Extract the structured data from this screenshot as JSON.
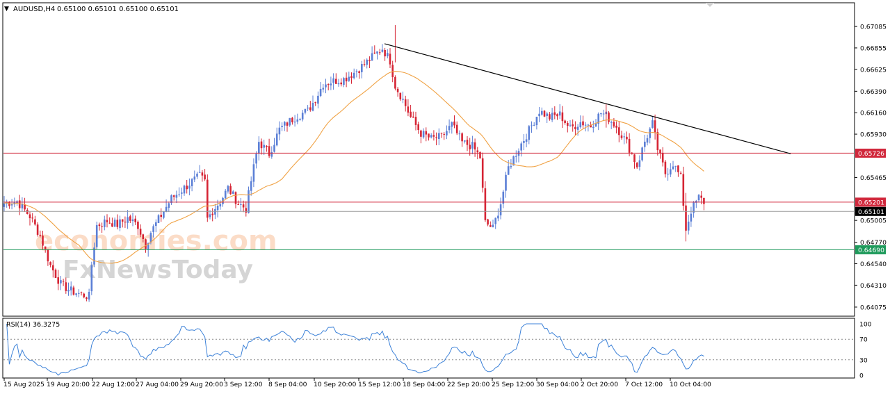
{
  "header": {
    "symbol_timeframe": "AUDUSD,H4",
    "ohlc": "0.65100 0.65101 0.65100 0.65101"
  },
  "watermarks": {
    "brand1": "economies.com",
    "brand2": "FxNewsToday"
  },
  "chart_data": {
    "type": "candlestick",
    "symbol": "AUDUSD",
    "timeframe": "H4",
    "price_ticks": [
      "0.67085",
      "0.66855",
      "0.66625",
      "0.66390",
      "0.66160",
      "0.65930",
      "0.65465",
      "0.65005",
      "0.64770",
      "0.64540",
      "0.64310",
      "0.64075"
    ],
    "ylim": [
      0.64,
      0.6719
    ],
    "x_ticks": [
      "15 Aug 2025",
      "19 Aug 20:00",
      "22 Aug 12:00",
      "27 Aug 04:00",
      "29 Aug 20:00",
      "3 Sep 12:00",
      "8 Sep 04:00",
      "10 Sep 20:00",
      "15 Sep 12:00",
      "18 Sep 04:00",
      "22 Sep 20:00",
      "25 Sep 12:00",
      "30 Sep 04:00",
      "2 Oct 20:00",
      "7 Oct 12:00",
      "10 Oct 04:00"
    ],
    "price_levels": [
      {
        "label": "0.65726",
        "value": 0.65726,
        "color": "#d1283c"
      },
      {
        "label": "0.65201",
        "value": 0.65201,
        "color": "#d1283c"
      },
      {
        "label": "0.65101",
        "value": 0.65101,
        "color": "#9a9a9a"
      },
      {
        "label": "0.64690",
        "value": 0.6469,
        "color": "#1e9a5b"
      }
    ],
    "trendline": {
      "from": {
        "x": "16 Sep 00:00",
        "y": 0.669
      },
      "to": {
        "x": "13 Oct 08:00",
        "y": 0.6572
      },
      "color": "#000000"
    },
    "moving_average_color": "#f0a244",
    "bull_color": "#5b7fd6",
    "bear_color": "#d62434",
    "close_path": [
      [
        0,
        0.6519
      ],
      [
        5,
        0.6521
      ],
      [
        10,
        0.6505
      ],
      [
        14,
        0.6484
      ],
      [
        18,
        0.6452
      ],
      [
        22,
        0.6432
      ],
      [
        26,
        0.6425
      ],
      [
        30,
        0.6421
      ],
      [
        33,
        0.6419
      ],
      [
        34,
        0.6453
      ],
      [
        36,
        0.6495
      ],
      [
        40,
        0.65
      ],
      [
        44,
        0.6496
      ],
      [
        48,
        0.6503
      ],
      [
        52,
        0.6495
      ],
      [
        55,
        0.6474
      ],
      [
        57,
        0.6488
      ],
      [
        61,
        0.6506
      ],
      [
        65,
        0.6524
      ],
      [
        69,
        0.6533
      ],
      [
        72,
        0.654
      ],
      [
        76,
        0.6548
      ],
      [
        78,
        0.6542
      ],
      [
        79,
        0.6502
      ],
      [
        81,
        0.6511
      ],
      [
        84,
        0.6521
      ],
      [
        87,
        0.6535
      ],
      [
        91,
        0.6519
      ],
      [
        94,
        0.6513
      ],
      [
        96,
        0.6543
      ],
      [
        99,
        0.6585
      ],
      [
        103,
        0.6572
      ],
      [
        107,
        0.6598
      ],
      [
        111,
        0.6607
      ],
      [
        114,
        0.6613
      ],
      [
        118,
        0.6618
      ],
      [
        121,
        0.6631
      ],
      [
        124,
        0.6647
      ],
      [
        128,
        0.665
      ],
      [
        132,
        0.6652
      ],
      [
        136,
        0.6659
      ],
      [
        140,
        0.6668
      ],
      [
        144,
        0.6678
      ],
      [
        147,
        0.6685
      ],
      [
        150,
        0.6672
      ],
      [
        152,
        0.6645
      ],
      [
        155,
        0.663
      ],
      [
        158,
        0.6611
      ],
      [
        162,
        0.6594
      ],
      [
        166,
        0.6588
      ],
      [
        170,
        0.659
      ],
      [
        174,
        0.6603
      ],
      [
        178,
        0.6584
      ],
      [
        182,
        0.658
      ],
      [
        185,
        0.6568
      ],
      [
        187,
        0.6498
      ],
      [
        190,
        0.6492
      ],
      [
        193,
        0.6519
      ],
      [
        196,
        0.6557
      ],
      [
        200,
        0.6578
      ],
      [
        204,
        0.6597
      ],
      [
        208,
        0.6618
      ],
      [
        212,
        0.6611
      ],
      [
        216,
        0.6614
      ],
      [
        220,
        0.6599
      ],
      [
        224,
        0.6606
      ],
      [
        228,
        0.6602
      ],
      [
        232,
        0.6616
      ],
      [
        234,
        0.6613
      ],
      [
        238,
        0.6601
      ],
      [
        242,
        0.6584
      ],
      [
        246,
        0.6559
      ],
      [
        249,
        0.6585
      ],
      [
        252,
        0.6604
      ],
      [
        254,
        0.6577
      ],
      [
        257,
        0.6551
      ],
      [
        260,
        0.6562
      ],
      [
        263,
        0.6546
      ],
      [
        265,
        0.6491
      ],
      [
        267,
        0.6511
      ],
      [
        270,
        0.6525
      ],
      [
        273,
        0.6518
      ],
      [
        275,
        0.651
      ]
    ],
    "rsi": {
      "label": "RSI(14) 36.3275",
      "ticks": [
        "100",
        "70",
        "30",
        "0"
      ],
      "levels": [
        70,
        30
      ],
      "ylim": [
        0,
        100
      ],
      "color": "#3d82d8"
    }
  }
}
